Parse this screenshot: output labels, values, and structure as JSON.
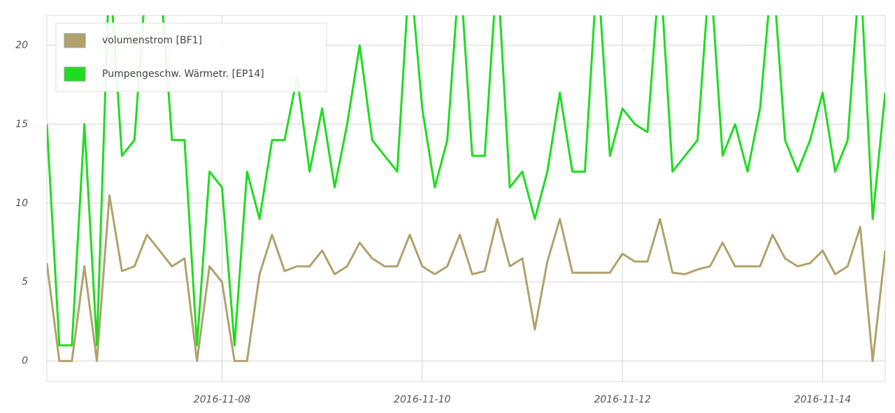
{
  "chart_data": {
    "type": "line",
    "x": [
      "2016-11-06T06:00",
      "2016-11-06T09:00",
      "2016-11-06T12:00",
      "2016-11-06T15:00",
      "2016-11-06T18:00",
      "2016-11-06T21:00",
      "2016-11-07T00:00",
      "2016-11-07T03:00",
      "2016-11-07T06:00",
      "2016-11-07T09:00",
      "2016-11-07T12:00",
      "2016-11-07T15:00",
      "2016-11-07T18:00",
      "2016-11-07T21:00",
      "2016-11-08T00:00",
      "2016-11-08T03:00",
      "2016-11-08T06:00",
      "2016-11-08T09:00",
      "2016-11-08T12:00",
      "2016-11-08T15:00",
      "2016-11-08T18:00",
      "2016-11-08T21:00",
      "2016-11-09T00:00",
      "2016-11-09T03:00",
      "2016-11-09T06:00",
      "2016-11-09T09:00",
      "2016-11-09T12:00",
      "2016-11-09T15:00",
      "2016-11-09T18:00",
      "2016-11-09T21:00",
      "2016-11-10T00:00",
      "2016-11-10T03:00",
      "2016-11-10T06:00",
      "2016-11-10T09:00",
      "2016-11-10T12:00",
      "2016-11-10T15:00",
      "2016-11-10T18:00",
      "2016-11-10T21:00",
      "2016-11-11T00:00",
      "2016-11-11T03:00",
      "2016-11-11T06:00",
      "2016-11-11T09:00",
      "2016-11-11T12:00",
      "2016-11-11T15:00",
      "2016-11-11T18:00",
      "2016-11-11T21:00",
      "2016-11-12T00:00",
      "2016-11-12T03:00",
      "2016-11-12T06:00",
      "2016-11-12T09:00",
      "2016-11-12T12:00",
      "2016-11-12T15:00",
      "2016-11-12T18:00",
      "2016-11-12T21:00",
      "2016-11-13T00:00",
      "2016-11-13T03:00",
      "2016-11-13T06:00",
      "2016-11-13T09:00",
      "2016-11-13T12:00",
      "2016-11-13T15:00",
      "2016-11-13T18:00",
      "2016-11-13T21:00",
      "2016-11-14T00:00",
      "2016-11-14T03:00",
      "2016-11-14T06:00",
      "2016-11-14T09:00",
      "2016-11-14T12:00",
      "2016-11-14T15:00"
    ],
    "series": [
      {
        "name": "volumenstrom [BF1]",
        "color": "#b1a26b",
        "values": [
          6.2,
          0,
          0,
          6,
          0,
          10.5,
          5.7,
          6,
          8,
          7,
          6,
          6.5,
          0,
          6,
          5,
          0,
          0,
          5.5,
          8,
          5.7,
          6,
          6,
          7,
          5.5,
          6,
          7.5,
          6.5,
          6,
          6,
          8,
          6,
          5.5,
          6,
          8,
          5.5,
          5.7,
          9,
          6,
          6.5,
          2,
          6.3,
          9,
          5.6,
          5.6,
          5.6,
          5.6,
          6.8,
          6.3,
          6.3,
          9,
          5.6,
          5.5,
          5.8,
          6,
          7.5,
          6,
          6,
          6,
          8,
          6.5,
          6,
          6.2,
          7,
          5.5,
          6,
          8.5,
          0,
          7
        ]
      },
      {
        "name": "Pumpengeschw. Wärmetr. [EP14]",
        "color": "#1fdc1f",
        "values": [
          15,
          1,
          1,
          15,
          1,
          25,
          13,
          14,
          25,
          25,
          14,
          14,
          1,
          12,
          11,
          1,
          12,
          9,
          14,
          14,
          18,
          12,
          16,
          11,
          15,
          20,
          14,
          13,
          12,
          25,
          16,
          11,
          14,
          25,
          13,
          13,
          25,
          11,
          12,
          9,
          12,
          17,
          12,
          12,
          25,
          13,
          16,
          15,
          14.5,
          25,
          12,
          13,
          14,
          25,
          13,
          15,
          12,
          16,
          25,
          14,
          12,
          14,
          17,
          12,
          14,
          25,
          9,
          17
        ]
      }
    ],
    "xlim": [
      "2016-11-06T06:00",
      "2016-11-14T15:00"
    ],
    "xticks": [
      "2016-11-08",
      "2016-11-10",
      "2016-11-12",
      "2016-11-14"
    ],
    "ylim": [
      -1.3,
      21.9
    ],
    "yticks": [
      0,
      5,
      10,
      15,
      20
    ],
    "grid": true,
    "legend": "upper-left"
  }
}
